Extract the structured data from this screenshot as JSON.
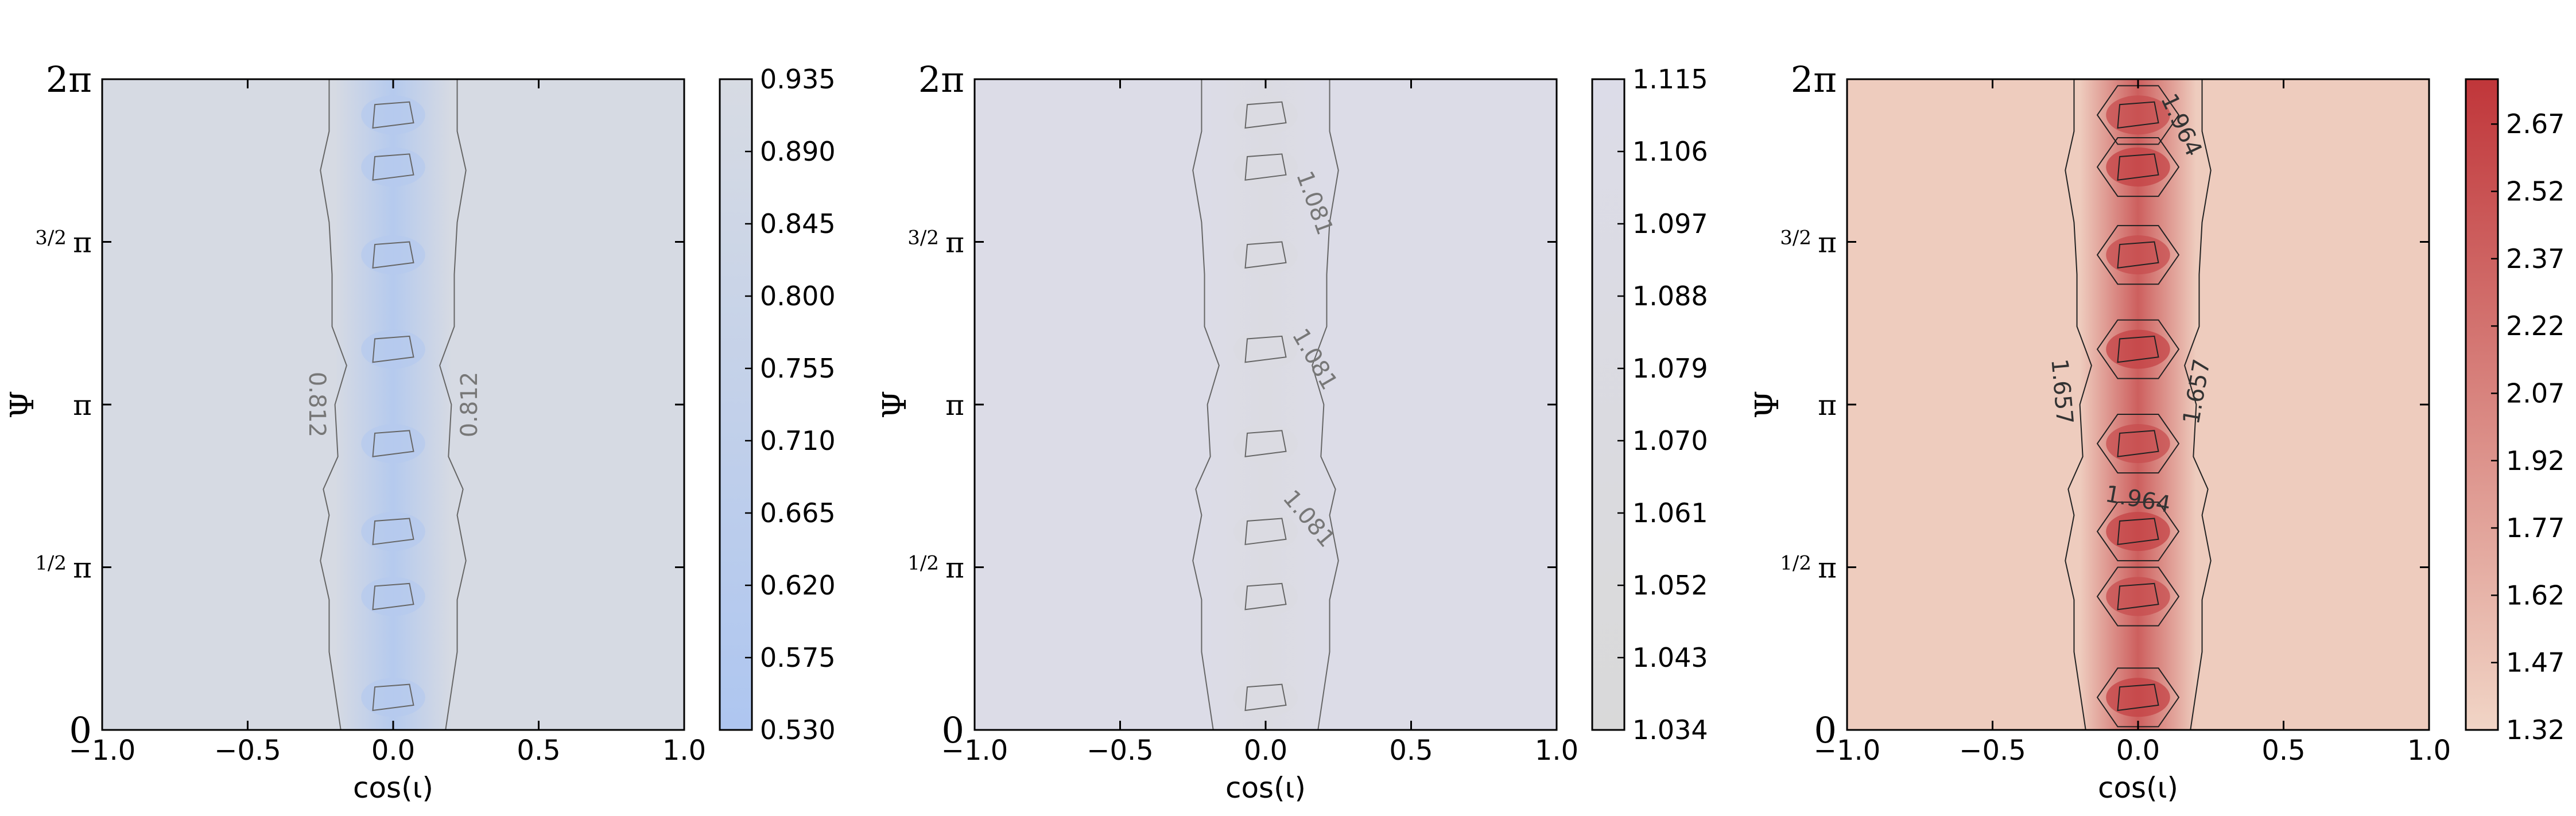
{
  "charts": [
    {
      "type": "contour",
      "xlabel": "cos(ι)",
      "ylabel": "Ψ",
      "xlim": [
        -1.0,
        1.0
      ],
      "x_ticks": [
        "−1.0",
        "−0.5",
        "0.0",
        "0.5",
        "1.0"
      ],
      "y_ticks": [
        {
          "main": "0",
          "frac": ""
        },
        {
          "main": "π",
          "frac": "1/2"
        },
        {
          "main": "π",
          "frac": ""
        },
        {
          "main": "π",
          "frac": "3/2"
        },
        {
          "main": "2π",
          "frac": ""
        }
      ],
      "colorbar": {
        "min": 0.53,
        "max": 0.935,
        "ticks": [
          "0.935",
          "0.890",
          "0.845",
          "0.800",
          "0.755",
          "0.710",
          "0.665",
          "0.620",
          "0.575",
          "0.530"
        ],
        "colors": [
          "#aec6f0",
          "#d7dbe3"
        ]
      },
      "background_value": 0.925,
      "ridge_value": 0.6,
      "contour_labels": [
        {
          "text": "0.812",
          "x": -0.26,
          "y": 0.5,
          "rotate": 90
        },
        {
          "text": "0.812",
          "x": 0.26,
          "y": 0.5,
          "rotate": -90
        }
      ],
      "contour_line_color": "#666666"
    },
    {
      "type": "contour",
      "xlabel": "cos(ι)",
      "ylabel": "Ψ",
      "xlim": [
        -1.0,
        1.0
      ],
      "x_ticks": [
        "−1.0",
        "−0.5",
        "0.0",
        "0.5",
        "1.0"
      ],
      "y_ticks": [
        {
          "main": "0",
          "frac": ""
        },
        {
          "main": "π",
          "frac": "1/2"
        },
        {
          "main": "π",
          "frac": ""
        },
        {
          "main": "π",
          "frac": "3/2"
        },
        {
          "main": "2π",
          "frac": ""
        }
      ],
      "colorbar": {
        "min": 1.034,
        "max": 1.115,
        "ticks": [
          "1.115",
          "1.106",
          "1.097",
          "1.088",
          "1.079",
          "1.070",
          "1.061",
          "1.052",
          "1.043",
          "1.034"
        ],
        "colors": [
          "#d9d9d9",
          "#dcdce8"
        ]
      },
      "background_value": 1.112,
      "ridge_value": 1.085,
      "contour_labels": [
        {
          "text": "1.081",
          "x": 0.17,
          "y": 0.81,
          "rotate": 70
        },
        {
          "text": "1.081",
          "x": 0.17,
          "y": 0.57,
          "rotate": 60
        },
        {
          "text": "1.081",
          "x": 0.15,
          "y": 0.325,
          "rotate": 50
        }
      ],
      "contour_line_color": "#666666"
    },
    {
      "type": "contour",
      "xlabel": "cos(ι)",
      "ylabel": "Ψ",
      "xlim": [
        -1.0,
        1.0
      ],
      "x_ticks": [
        "−1.0",
        "−0.5",
        "0.0",
        "0.5",
        "1.0"
      ],
      "y_ticks": [
        {
          "main": "0",
          "frac": ""
        },
        {
          "main": "π",
          "frac": "1/2"
        },
        {
          "main": "π",
          "frac": ""
        },
        {
          "main": "π",
          "frac": "3/2"
        },
        {
          "main": "2π",
          "frac": ""
        }
      ],
      "colorbar": {
        "min": 1.32,
        "max": 2.77,
        "ticks": [
          "2.67",
          "2.52",
          "2.37",
          "2.22",
          "2.07",
          "1.92",
          "1.77",
          "1.62",
          "1.47",
          "1.32"
        ],
        "colors": [
          "#f1d5c6",
          "#c0363a"
        ]
      },
      "background_value": 1.4,
      "ridge_value": 2.4,
      "contour_labels": [
        {
          "text": "1.964",
          "x": 0.15,
          "y": 0.93,
          "rotate": 65
        },
        {
          "text": "1.657",
          "x": -0.26,
          "y": 0.52,
          "rotate": 85
        },
        {
          "text": "1.657",
          "x": 0.2,
          "y": 0.52,
          "rotate": -80
        },
        {
          "text": "1.964",
          "x": 0.0,
          "y": 0.355,
          "rotate": 10
        }
      ],
      "contour_line_color": "#222222"
    }
  ]
}
